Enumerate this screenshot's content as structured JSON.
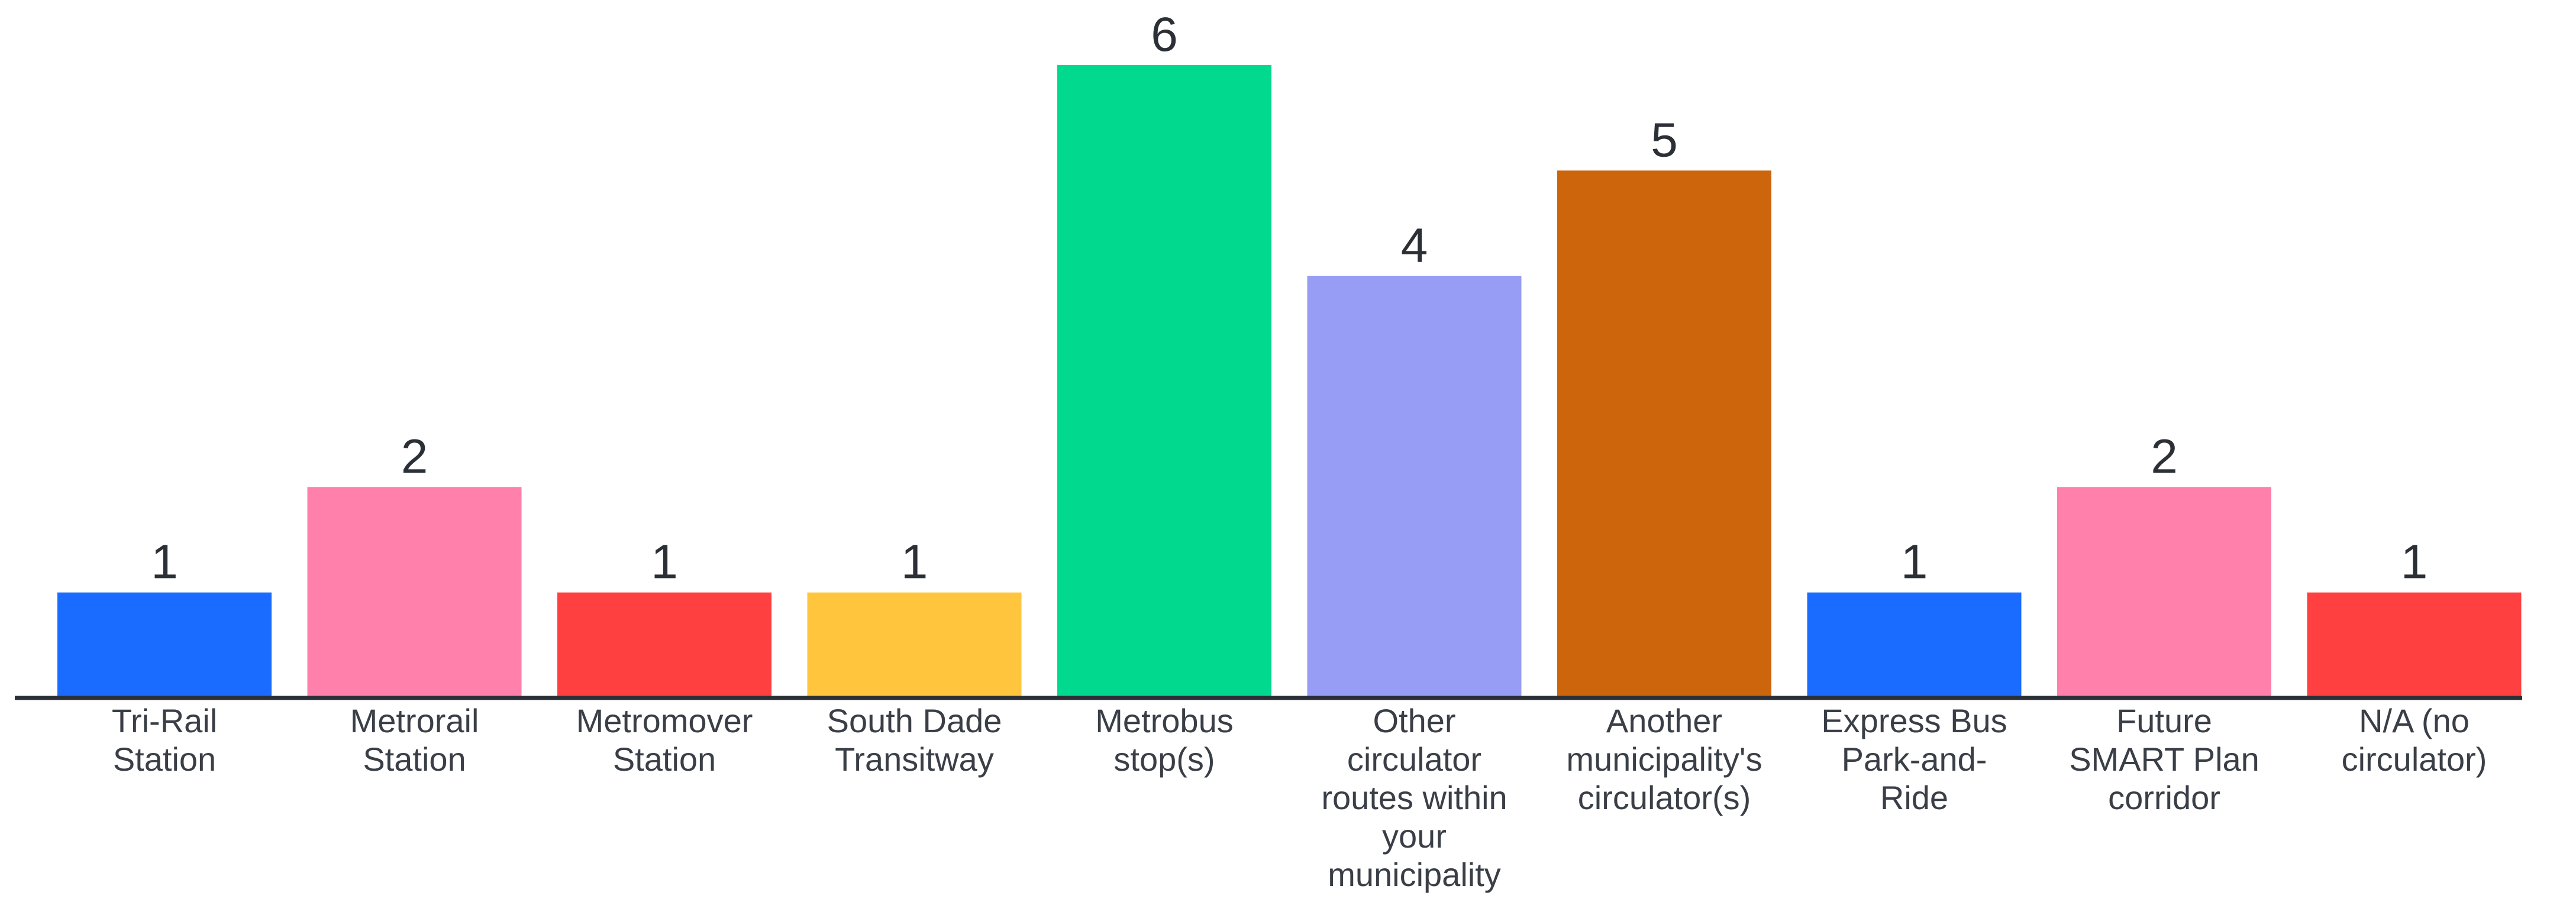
{
  "chart_data": {
    "type": "bar",
    "title": "",
    "xlabel": "",
    "ylabel": "",
    "ylim": [
      0,
      6.2
    ],
    "grid": false,
    "legend": "none",
    "categories": [
      "Tri-Rail Station",
      "Metrorail Station",
      "Metromover Station",
      "South Dade Transitway",
      "Metrobus stop(s)",
      "Other circulator routes within your municipality",
      "Another municipality's circulator(s)",
      "Express Bus Park-and-Ride",
      "Future SMART Plan corridor",
      "N/A (no circulator)"
    ],
    "category_label_lines": [
      [
        "Tri-Rail",
        "Station"
      ],
      [
        "Metrorail",
        "Station"
      ],
      [
        "Metromover",
        "Station"
      ],
      [
        "South Dade",
        "Transitway"
      ],
      [
        "Metrobus",
        "stop(s)"
      ],
      [
        "Other",
        "circulator",
        "routes within",
        "your",
        "municipality"
      ],
      [
        "Another",
        "municipality's",
        "circulator(s)"
      ],
      [
        "Express Bus",
        "Park-and-",
        "Ride"
      ],
      [
        "Future",
        "SMART Plan",
        "corridor"
      ],
      [
        "N/A (no",
        "circulator)"
      ]
    ],
    "values": [
      1,
      2,
      1,
      1,
      6,
      4,
      5,
      1,
      2,
      1
    ],
    "data_labels": [
      "1",
      "2",
      "1",
      "1",
      "6",
      "4",
      "5",
      "1",
      "2",
      "1"
    ],
    "colors": [
      "#1a6bff",
      "#ff80ab",
      "#ff4040",
      "#ffc53d",
      "#00d98e",
      "#979cf4",
      "#cc650c",
      "#1a6bff",
      "#ff80ab",
      "#ff4040"
    ],
    "axis_color": "#2b2f36"
  }
}
